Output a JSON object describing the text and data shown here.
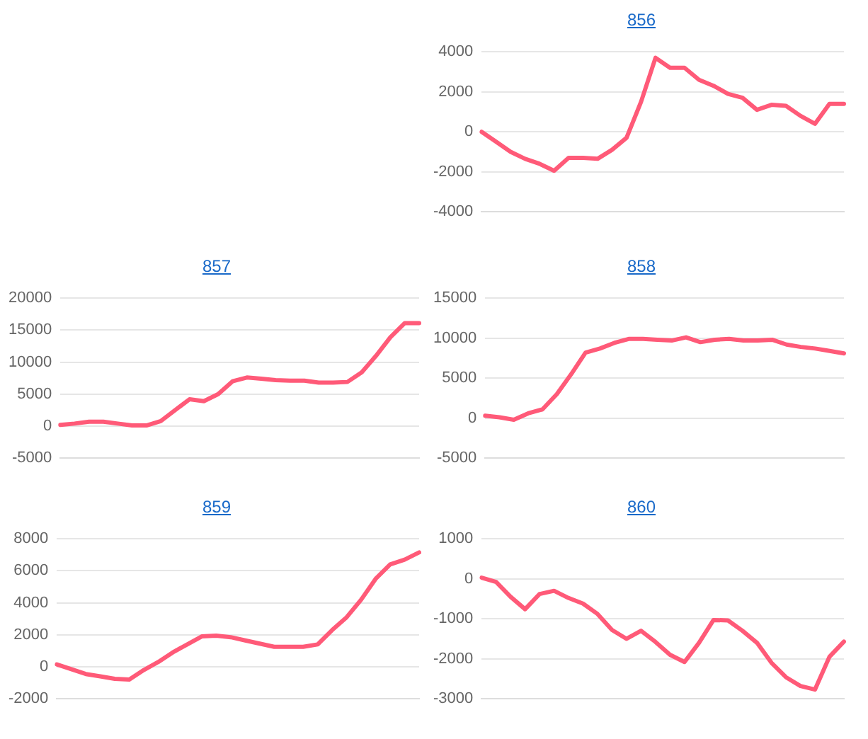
{
  "chart_data": [
    {
      "type": "line",
      "title": "856",
      "categories": [
        null,
        null,
        null,
        null,
        null,
        null,
        null,
        null,
        null,
        null,
        null,
        null,
        null,
        null,
        null,
        null,
        null,
        null,
        null,
        null,
        null,
        null,
        null,
        null,
        null,
        null
      ],
      "series": [
        {
          "color": "#ff5a78",
          "values": [
            0,
            -500,
            -1000,
            -1350,
            -1600,
            -1950,
            -1300,
            -1300,
            -1350,
            -900,
            -300,
            1500,
            3700,
            3200,
            3200,
            2600,
            2300,
            1900,
            1700,
            1100,
            1350,
            1300,
            800,
            400,
            1400,
            1400
          ]
        }
      ],
      "ylim": [
        -4000,
        4000
      ],
      "yticks": [
        -4000,
        -2000,
        0,
        2000,
        4000
      ],
      "grid": "y",
      "legend": false,
      "marker": "none",
      "line_style": "solid"
    },
    {
      "type": "line",
      "title": "857",
      "categories": [
        null,
        null,
        null,
        null,
        null,
        null,
        null,
        null,
        null,
        null,
        null,
        null,
        null,
        null,
        null,
        null,
        null,
        null,
        null,
        null,
        null,
        null,
        null,
        null,
        null,
        null
      ],
      "series": [
        {
          "color": "#ff5a78",
          "values": [
            200,
            400,
            700,
            700,
            400,
            100,
            100,
            800,
            2500,
            4200,
            3900,
            5000,
            7000,
            7600,
            7400,
            7200,
            7100,
            7100,
            6800,
            6800,
            6900,
            8400,
            11000,
            13900,
            16100,
            16100
          ]
        }
      ],
      "ylim": [
        -5000,
        20000
      ],
      "yticks": [
        -5000,
        0,
        5000,
        10000,
        15000,
        20000
      ],
      "grid": "y",
      "legend": false,
      "marker": "none",
      "line_style": "solid"
    },
    {
      "type": "line",
      "title": "858",
      "categories": [
        null,
        null,
        null,
        null,
        null,
        null,
        null,
        null,
        null,
        null,
        null,
        null,
        null,
        null,
        null,
        null,
        null,
        null,
        null,
        null,
        null,
        null,
        null,
        null,
        null,
        null
      ],
      "series": [
        {
          "color": "#ff5a78",
          "values": [
            300,
            100,
            -200,
            600,
            1100,
            3000,
            5500,
            8200,
            8700,
            9400,
            9900,
            9900,
            9800,
            9700,
            10100,
            9500,
            9800,
            9900,
            9700,
            9700,
            9800,
            9200,
            8900,
            8700,
            8400,
            8100
          ]
        }
      ],
      "ylim": [
        -5000,
        15000
      ],
      "yticks": [
        -5000,
        0,
        5000,
        10000,
        15000
      ],
      "grid": "y",
      "legend": false,
      "marker": "none",
      "line_style": "solid"
    },
    {
      "type": "line",
      "title": "859",
      "categories": [
        null,
        null,
        null,
        null,
        null,
        null,
        null,
        null,
        null,
        null,
        null,
        null,
        null,
        null,
        null,
        null,
        null,
        null,
        null,
        null,
        null,
        null,
        null,
        null,
        null,
        null
      ],
      "series": [
        {
          "color": "#ff5a78",
          "values": [
            150,
            -150,
            -450,
            -600,
            -750,
            -800,
            -200,
            300,
            900,
            1400,
            1900,
            1950,
            1850,
            1650,
            1450,
            1250,
            1250,
            1250,
            1400,
            2300,
            3100,
            4200,
            5500,
            6400,
            6700,
            7150
          ]
        }
      ],
      "ylim": [
        -2000,
        8000
      ],
      "yticks": [
        -2000,
        0,
        2000,
        4000,
        6000,
        8000
      ],
      "grid": "y",
      "legend": false,
      "marker": "none",
      "line_style": "solid"
    },
    {
      "type": "line",
      "title": "860",
      "categories": [
        null,
        null,
        null,
        null,
        null,
        null,
        null,
        null,
        null,
        null,
        null,
        null,
        null,
        null,
        null,
        null,
        null,
        null,
        null,
        null,
        null,
        null,
        null,
        null,
        null,
        null
      ],
      "series": [
        {
          "color": "#ff5a78",
          "values": [
            30,
            -80,
            -450,
            -760,
            -380,
            -300,
            -480,
            -620,
            -880,
            -1280,
            -1500,
            -1300,
            -1580,
            -1900,
            -2080,
            -1600,
            -1030,
            -1040,
            -1300,
            -1600,
            -2100,
            -2460,
            -2680,
            -2770,
            -1950,
            -1570
          ]
        }
      ],
      "ylim": [
        -3000,
        1000
      ],
      "yticks": [
        -3000,
        -2000,
        -1000,
        0,
        1000
      ],
      "grid": "y",
      "legend": false,
      "marker": "none",
      "line_style": "solid"
    }
  ]
}
